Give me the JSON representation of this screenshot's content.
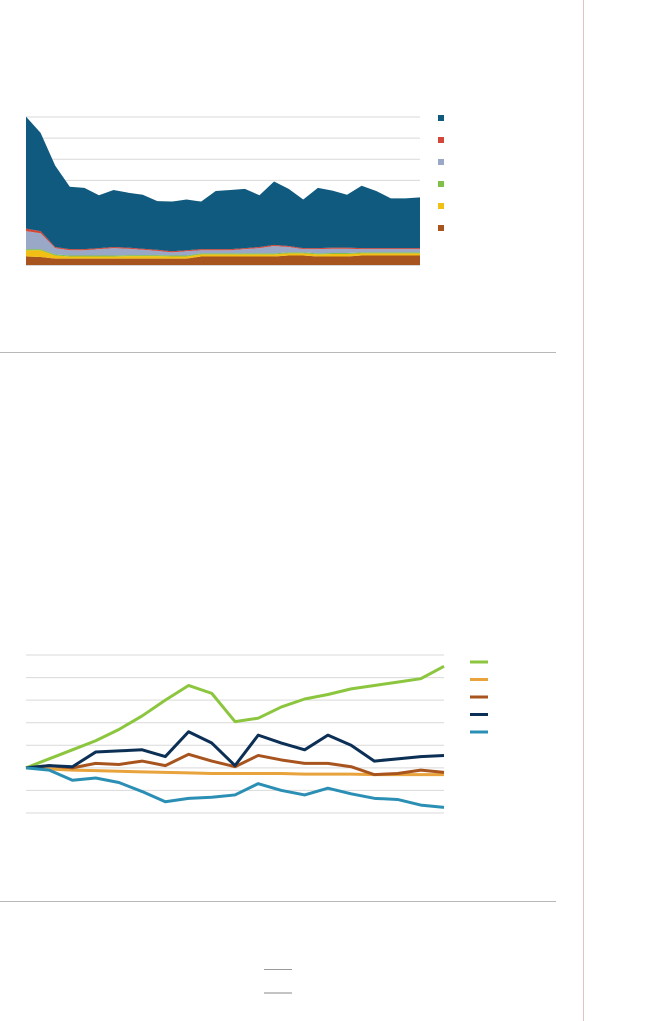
{
  "chart_data": [
    {
      "type": "area",
      "x": [
        1,
        2,
        3,
        4,
        5,
        6,
        7,
        8,
        9,
        10,
        11,
        12,
        13,
        14,
        15,
        16,
        17,
        18,
        19,
        20,
        21,
        22,
        23,
        24,
        25,
        26,
        27,
        28
      ],
      "ylim": [
        0,
        7
      ],
      "grid": true,
      "legend": "right",
      "series": [
        {
          "color": "#a8541f",
          "values": [
            0.4,
            0.38,
            0.3,
            0.3,
            0.3,
            0.3,
            0.3,
            0.3,
            0.3,
            0.3,
            0.3,
            0.3,
            0.4,
            0.4,
            0.4,
            0.4,
            0.4,
            0.4,
            0.45,
            0.45,
            0.4,
            0.4,
            0.4,
            0.45,
            0.45,
            0.45,
            0.45,
            0.45
          ]
        },
        {
          "color": "#f2c014",
          "values": [
            0.3,
            0.32,
            0.15,
            0.1,
            0.1,
            0.1,
            0.1,
            0.12,
            0.12,
            0.12,
            0.1,
            0.1,
            0.1,
            0.1,
            0.1,
            0.1,
            0.1,
            0.1,
            0.1,
            0.1,
            0.1,
            0.12,
            0.12,
            0.1,
            0.1,
            0.1,
            0.1,
            0.1
          ]
        },
        {
          "color": "#7fbf4a",
          "values": [
            0.05,
            0.05,
            0.05,
            0.05,
            0.05,
            0.05,
            0.05,
            0.05,
            0.05,
            0.05,
            0.05,
            0.05,
            0.05,
            0.05,
            0.05,
            0.05,
            0.05,
            0.05,
            0.05,
            0.05,
            0.05,
            0.05,
            0.05,
            0.05,
            0.05,
            0.05,
            0.05,
            0.05
          ]
        },
        {
          "color": "#9aa8c8",
          "values": [
            0.85,
            0.75,
            0.3,
            0.25,
            0.25,
            0.3,
            0.35,
            0.3,
            0.25,
            0.2,
            0.15,
            0.2,
            0.15,
            0.15,
            0.15,
            0.2,
            0.25,
            0.35,
            0.25,
            0.15,
            0.2,
            0.2,
            0.2,
            0.15,
            0.15,
            0.15,
            0.15,
            0.15
          ]
        },
        {
          "color": "#d2473a",
          "values": [
            0.12,
            0.1,
            0.05,
            0.05,
            0.05,
            0.05,
            0.05,
            0.05,
            0.05,
            0.05,
            0.05,
            0.05,
            0.05,
            0.05,
            0.05,
            0.05,
            0.05,
            0.05,
            0.05,
            0.05,
            0.05,
            0.05,
            0.05,
            0.05,
            0.05,
            0.05,
            0.05,
            0.05
          ]
        },
        {
          "color": "#0f5a7e",
          "values": [
            5.3,
            4.65,
            3.85,
            2.95,
            2.9,
            2.5,
            2.7,
            2.6,
            2.55,
            2.3,
            2.35,
            2.4,
            2.25,
            2.75,
            2.8,
            2.8,
            2.45,
            3.0,
            2.7,
            2.3,
            2.85,
            2.7,
            2.5,
            2.95,
            2.7,
            2.35,
            2.35,
            2.4
          ]
        }
      ]
    },
    {
      "type": "line",
      "x": [
        1,
        2,
        3,
        4,
        5,
        6,
        7,
        8,
        9,
        10,
        11,
        12,
        13,
        14,
        15,
        16,
        17,
        18,
        19
      ],
      "ylim": [
        -2,
        5
      ],
      "grid": true,
      "legend": "right",
      "series": [
        {
          "color": "#8cc63f",
          "values": [
            0,
            0.4,
            0.8,
            1.2,
            1.7,
            2.3,
            3.0,
            3.65,
            3.3,
            2.05,
            2.2,
            2.7,
            3.05,
            3.25,
            3.5,
            3.65,
            3.8,
            3.95,
            4.5
          ]
        },
        {
          "color": "#e8a33c",
          "values": [
            0,
            -0.05,
            -0.1,
            -0.12,
            -0.15,
            -0.18,
            -0.2,
            -0.22,
            -0.25,
            -0.25,
            -0.25,
            -0.25,
            -0.28,
            -0.28,
            -0.28,
            -0.3,
            -0.3,
            -0.3,
            -0.3
          ]
        },
        {
          "color": "#a8541f",
          "values": [
            0,
            0.1,
            0.0,
            0.2,
            0.15,
            0.3,
            0.1,
            0.6,
            0.3,
            0.05,
            0.55,
            0.35,
            0.2,
            0.2,
            0.05,
            -0.3,
            -0.25,
            -0.1,
            -0.2
          ]
        },
        {
          "color": "#0b2f55",
          "values": [
            0,
            0.1,
            0.05,
            0.7,
            0.75,
            0.8,
            0.5,
            1.6,
            1.1,
            0.1,
            1.45,
            1.1,
            0.8,
            1.45,
            1.0,
            0.3,
            0.4,
            0.5,
            0.55
          ]
        },
        {
          "color": "#2b8fb5",
          "values": [
            0,
            -0.1,
            -0.55,
            -0.45,
            -0.65,
            -1.05,
            -1.5,
            -1.35,
            -1.3,
            -1.2,
            -0.7,
            -1.0,
            -1.2,
            -0.9,
            -1.15,
            -1.35,
            -1.4,
            -1.65,
            -1.75
          ]
        }
      ]
    }
  ]
}
